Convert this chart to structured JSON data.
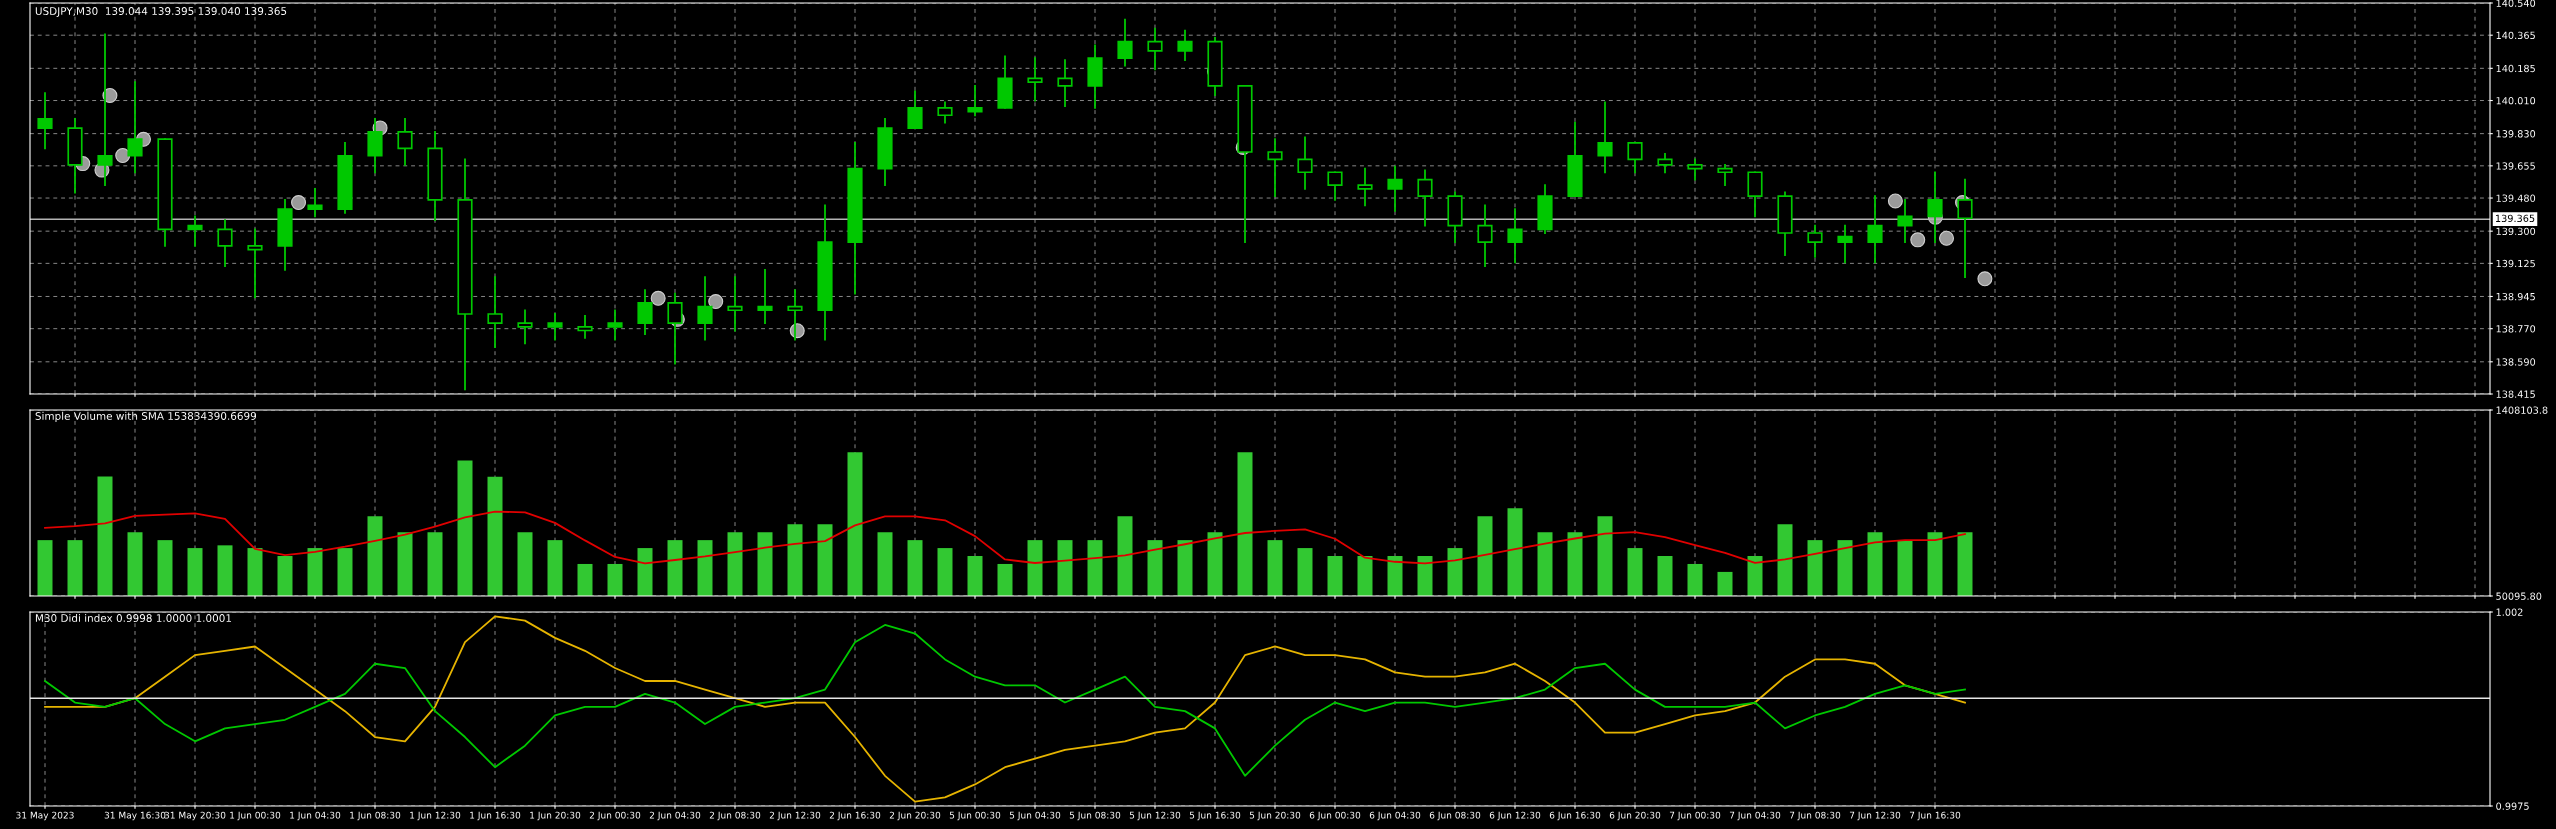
{
  "chart_data": [
    {
      "type": "candlestick",
      "title": "USDJPY,M30  139.044 139.395 139.040 139.365",
      "color": "#00c800",
      "grid": true,
      "tick_labels": "y",
      "categories": [
        null,
        null,
        null,
        null,
        null,
        null,
        null,
        null,
        null,
        null,
        null,
        null,
        null,
        null,
        null,
        null,
        null,
        null,
        null,
        null,
        null,
        null,
        null,
        null,
        null,
        null,
        null,
        null,
        null,
        null,
        null,
        null,
        null,
        null,
        null,
        null,
        null,
        null,
        null,
        null,
        null,
        null,
        null,
        null,
        null,
        null,
        null,
        null,
        null,
        null,
        null,
        null,
        null,
        null,
        null,
        null,
        null,
        null,
        null,
        null,
        null,
        null,
        null,
        null,
        null,
        null,
        null,
        null,
        null,
        null,
        null,
        null,
        null,
        null,
        null,
        null,
        null,
        null,
        null,
        null,
        null,
        null
      ],
      "ohlc": [
        [
          139.86,
          140.05,
          139.75,
          139.91
        ],
        [
          139.86,
          139.91,
          139.51,
          139.66
        ],
        [
          139.66,
          140.37,
          139.55,
          139.71
        ],
        [
          139.71,
          140.11,
          139.62,
          139.8
        ],
        [
          139.8,
          139.8,
          139.22,
          139.31
        ],
        [
          139.31,
          139.38,
          139.22,
          139.33
        ],
        [
          139.31,
          139.36,
          139.11,
          139.22
        ],
        [
          139.22,
          139.31,
          138.94,
          139.2
        ],
        [
          139.22,
          139.47,
          139.09,
          139.42
        ],
        [
          139.42,
          139.53,
          139.38,
          139.44
        ],
        [
          139.42,
          139.78,
          139.4,
          139.71
        ],
        [
          139.71,
          139.91,
          139.62,
          139.84
        ],
        [
          139.84,
          139.91,
          139.66,
          139.75
        ],
        [
          139.75,
          139.84,
          139.36,
          139.47
        ],
        [
          139.47,
          139.69,
          138.44,
          138.85
        ],
        [
          138.85,
          139.05,
          138.67,
          138.8
        ],
        [
          138.8,
          138.87,
          138.69,
          138.78
        ],
        [
          138.78,
          138.85,
          138.71,
          138.8
        ],
        [
          138.78,
          138.84,
          138.72,
          138.76
        ],
        [
          138.78,
          138.87,
          138.71,
          138.8
        ],
        [
          138.8,
          138.98,
          138.74,
          138.91
        ],
        [
          138.91,
          138.96,
          138.58,
          138.8
        ],
        [
          138.8,
          139.05,
          138.71,
          138.89
        ],
        [
          138.89,
          139.05,
          138.76,
          138.87
        ],
        [
          138.87,
          139.09,
          138.8,
          138.89
        ],
        [
          138.89,
          138.98,
          138.71,
          138.87
        ],
        [
          138.87,
          139.44,
          138.71,
          139.24
        ],
        [
          139.24,
          139.78,
          138.96,
          139.64
        ],
        [
          139.64,
          139.91,
          139.55,
          139.86
        ],
        [
          139.86,
          140.06,
          139.86,
          139.97
        ],
        [
          139.97,
          140.0,
          139.89,
          139.93
        ],
        [
          139.95,
          140.09,
          139.93,
          139.97
        ],
        [
          139.97,
          140.25,
          139.97,
          140.13
        ],
        [
          140.13,
          140.24,
          140.01,
          140.11
        ],
        [
          140.13,
          140.23,
          139.98,
          140.09
        ],
        [
          140.09,
          140.31,
          139.97,
          140.24
        ],
        [
          140.24,
          140.45,
          140.2,
          140.33
        ],
        [
          140.33,
          140.4,
          140.18,
          140.28
        ],
        [
          140.28,
          140.39,
          140.23,
          140.33
        ],
        [
          140.33,
          140.35,
          140.04,
          140.09
        ],
        [
          140.09,
          140.09,
          139.24,
          139.73
        ],
        [
          139.73,
          139.8,
          139.49,
          139.69
        ],
        [
          139.69,
          139.81,
          139.53,
          139.62
        ],
        [
          139.62,
          139.62,
          139.47,
          139.55
        ],
        [
          139.55,
          139.64,
          139.44,
          139.53
        ],
        [
          139.53,
          139.65,
          139.41,
          139.58
        ],
        [
          139.58,
          139.63,
          139.33,
          139.49
        ],
        [
          139.49,
          139.51,
          139.24,
          139.33
        ],
        [
          139.33,
          139.44,
          139.11,
          139.24
        ],
        [
          139.24,
          139.42,
          139.13,
          139.31
        ],
        [
          139.31,
          139.55,
          139.29,
          139.49
        ],
        [
          139.49,
          139.89,
          139.49,
          139.71
        ],
        [
          139.71,
          140.0,
          139.62,
          139.78
        ],
        [
          139.78,
          139.78,
          139.62,
          139.69
        ],
        [
          139.69,
          139.72,
          139.62,
          139.66
        ],
        [
          139.66,
          139.69,
          139.58,
          139.64
        ],
        [
          139.64,
          139.66,
          139.55,
          139.62
        ],
        [
          139.62,
          139.62,
          139.38,
          139.49
        ],
        [
          139.49,
          139.51,
          139.17,
          139.29
        ],
        [
          139.29,
          139.33,
          139.16,
          139.24
        ],
        [
          139.24,
          139.33,
          139.13,
          139.27
        ],
        [
          139.24,
          139.49,
          139.13,
          139.33
        ],
        [
          139.33,
          139.47,
          139.24,
          139.38
        ],
        [
          139.38,
          139.62,
          139.24,
          139.47
        ],
        [
          139.47,
          139.58,
          139.05,
          139.37
        ],
        null,
        null,
        null,
        null,
        null,
        null,
        null,
        null,
        null,
        null,
        null,
        null,
        null,
        null,
        null,
        null,
        null
      ],
      "ylim": [
        138.415,
        140.54
      ],
      "yticks": [
        {
          "value": 140.54,
          "label": "140.540"
        },
        {
          "value": 140.365,
          "label": "140.365"
        },
        {
          "value": 140.185,
          "label": "140.185"
        },
        {
          "value": 140.01,
          "label": "140.010"
        },
        {
          "value": 139.83,
          "label": "139.830"
        },
        {
          "value": 139.655,
          "label": "139.655"
        },
        {
          "value": 139.48,
          "label": "139.480"
        },
        {
          "value": 139.3,
          "label": "139.300"
        },
        {
          "value": 139.125,
          "label": "139.125"
        },
        {
          "value": 138.945,
          "label": "138.945"
        },
        {
          "value": 138.77,
          "label": "138.770"
        },
        {
          "value": 138.59,
          "label": "138.590"
        },
        {
          "value": 138.415,
          "label": "138.415"
        }
      ],
      "ref_lines": [
        {
          "axis": "y",
          "value": 139.365,
          "label": "139.365",
          "color": "#b4b4b4"
        }
      ]
    },
    {
      "type": "bar",
      "title": "Simple Volume with SMA 153834390.6699",
      "grid": true,
      "tick_labels": "y",
      "color": "#32c832",
      "categories": [
        null,
        null,
        null,
        null,
        null,
        null,
        null,
        null,
        null,
        null,
        null,
        null,
        null,
        null,
        null,
        null,
        null,
        null,
        null,
        null,
        null,
        null,
        null,
        null,
        null,
        null,
        null,
        null,
        null,
        null,
        null,
        null,
        null,
        null,
        null,
        null,
        null,
        null,
        null,
        null,
        null,
        null,
        null,
        null,
        null,
        null,
        null,
        null,
        null,
        null,
        null,
        null,
        null,
        null,
        null,
        null,
        null,
        null,
        null,
        null,
        null,
        null,
        null,
        null,
        null,
        null,
        null,
        null,
        null,
        null,
        null,
        null,
        null,
        null,
        null,
        null,
        null,
        null,
        null,
        null,
        null,
        null
      ],
      "values": [
        458000,
        458000,
        922000,
        516000,
        458000,
        400000,
        420000,
        400000,
        342000,
        400000,
        400000,
        632000,
        516000,
        516000,
        1040000,
        920000,
        516000,
        458000,
        284000,
        284000,
        400000,
        458000,
        458000,
        516000,
        516000,
        574000,
        574000,
        1100000,
        516000,
        458000,
        400000,
        342000,
        284000,
        458000,
        458000,
        458000,
        632000,
        458000,
        458000,
        516000,
        1100000,
        458000,
        400000,
        342000,
        342000,
        342000,
        342000,
        400000,
        632000,
        690000,
        516000,
        516000,
        632000,
        400000,
        342000,
        284000,
        226000,
        342000,
        574000,
        458000,
        458000,
        516000,
        458000,
        516000,
        516000,
        null,
        null,
        null,
        null,
        null,
        null,
        null,
        null,
        null,
        null,
        null,
        null,
        null,
        null,
        null,
        null,
        null
      ],
      "ylim": [
        50095.8,
        1408103.8
      ],
      "yticks": [
        {
          "value": 50095.8,
          "label": "50095.80"
        },
        {
          "value": 1408103.8,
          "label": "1408103.8"
        }
      ]
    },
    {
      "type": "line",
      "tick_labels": false,
      "color": "#e00000",
      "categories": [
        null,
        null,
        null,
        null,
        null,
        null,
        null,
        null,
        null,
        null,
        null,
        null,
        null,
        null,
        null,
        null,
        null,
        null,
        null,
        null,
        null,
        null,
        null,
        null,
        null,
        null,
        null,
        null,
        null,
        null,
        null,
        null,
        null,
        null,
        null,
        null,
        null,
        null,
        null,
        null,
        null,
        null,
        null,
        null,
        null,
        null,
        null,
        null,
        null,
        null,
        null,
        null,
        null,
        null,
        null,
        null,
        null,
        null,
        null,
        null,
        null,
        null,
        null,
        null,
        null,
        null,
        null,
        null,
        null,
        null,
        null,
        null,
        null,
        null,
        null,
        null,
        null,
        null,
        null,
        null,
        null,
        null
      ],
      "values": [
        548000,
        560000,
        581000,
        635000,
        644000,
        654000,
        614000,
        394000,
        348000,
        373000,
        410000,
        452000,
        499000,
        557000,
        624000,
        666000,
        661000,
        584000,
        456000,
        335000,
        288000,
        313000,
        339000,
        370000,
        403000,
        431000,
        451000,
        566000,
        632000,
        632000,
        603000,
        487000,
        317000,
        291000,
        309000,
        326000,
        347000,
        388000,
        428000,
        470000,
        510000,
        526000,
        536000,
        468000,
        330000,
        300000,
        288000,
        310000,
        351000,
        392000,
        433000,
        470000,
        505000,
        516000,
        480000,
        422000,
        365000,
        292000,
        317000,
        358000,
        400000,
        442000,
        458000,
        458000,
        502000,
        null,
        null,
        null,
        null,
        null,
        null,
        null,
        null,
        null,
        null,
        null,
        null,
        null,
        null,
        null,
        null,
        null
      ],
      "ylim": [
        50095.8,
        1408103.8
      ]
    },
    {
      "type": "line",
      "title": "M30 Didi index 0.9998 1.0000 1.0001",
      "grid": true,
      "categories": [
        "31 May 2023",
        null,
        null,
        "31 May 16:30",
        null,
        "31 May 20:30",
        null,
        "1 Jun 00:30",
        null,
        "1 Jun 04:30",
        null,
        "1 Jun 08:30",
        null,
        "1 Jun 12:30",
        null,
        "1 Jun 16:30",
        null,
        "1 Jun 20:30",
        null,
        "2 Jun 00:30",
        null,
        "2 Jun 04:30",
        null,
        "2 Jun 08:30",
        null,
        "2 Jun 12:30",
        null,
        "2 Jun 16:30",
        null,
        "2 Jun 20:30",
        null,
        "5 Jun 00:30",
        null,
        "5 Jun 04:30",
        null,
        "5 Jun 08:30",
        null,
        "5 Jun 12:30",
        null,
        "5 Jun 16:30",
        null,
        "5 Jun 20:30",
        null,
        "6 Jun 00:30",
        null,
        "6 Jun 04:30",
        null,
        "6 Jun 08:30",
        null,
        "6 Jun 12:30",
        null,
        "6 Jun 16:30",
        null,
        "6 Jun 20:30",
        null,
        "7 Jun 00:30",
        null,
        "7 Jun 04:30",
        null,
        "7 Jun 08:30",
        null,
        "7 Jun 12:30",
        null,
        "7 Jun 16:30",
        null,
        null,
        null,
        null,
        null,
        null,
        null,
        null,
        null,
        null,
        null,
        null,
        null,
        null,
        null,
        null,
        null,
        null
      ],
      "series": [
        {
          "color": "#e6b400",
          "values": [
            0.9998,
            0.9998,
            0.9998,
            1.0,
            1.0005,
            1.001,
            1.0011,
            1.0012,
            1.0007,
            1.0002,
            0.9997,
            0.9991,
            0.999,
            0.9998,
            1.0013,
            1.0019,
            1.0018,
            1.0014,
            1.0011,
            1.0007,
            1.0004,
            1.0004,
            1.0002,
            1.0,
            0.9998,
            0.9999,
            0.9999,
            0.9991,
            0.9982,
            0.9976,
            0.9977,
            0.998,
            0.9984,
            0.9986,
            0.9988,
            0.9989,
            0.999,
            0.9992,
            0.9993,
            0.9999,
            1.001,
            1.0012,
            1.001,
            1.001,
            1.0009,
            1.0006,
            1.0005,
            1.0005,
            1.0006,
            1.0008,
            1.0004,
            0.9999,
            0.9992,
            0.9992,
            0.9994,
            0.9996,
            0.9997,
            0.9999,
            1.0005,
            1.0009,
            1.0009,
            1.0008,
            1.0003,
            1.0001,
            0.9999,
            null,
            null,
            null,
            null,
            null,
            null,
            null,
            null,
            null,
            null,
            null,
            null,
            null,
            null,
            null,
            null,
            null
          ]
        },
        {
          "color": "#00c800",
          "values": [
            1.0004,
            0.9999,
            0.9998,
            1.0,
            0.9994,
            0.999,
            0.9993,
            0.9994,
            0.9995,
            0.9998,
            1.0001,
            1.0008,
            1.0007,
            0.9997,
            0.9991,
            0.9984,
            0.9989,
            0.9996,
            0.9998,
            0.9998,
            1.0001,
            0.9999,
            0.9994,
            0.9998,
            0.9999,
            1.0,
            1.0002,
            1.0013,
            1.0017,
            1.0015,
            1.0009,
            1.0005,
            1.0003,
            1.0003,
            0.9999,
            1.0002,
            1.0005,
            0.9998,
            0.9997,
            0.9993,
            0.9982,
            0.9989,
            0.9995,
            0.9999,
            0.9997,
            0.9999,
            0.9999,
            0.9998,
            0.9999,
            1.0,
            1.0002,
            1.0007,
            1.0008,
            1.0002,
            0.9998,
            0.9998,
            0.9998,
            0.9999,
            0.9993,
            0.9996,
            0.9998,
            1.0001,
            1.0003,
            1.0001,
            1.0002,
            null,
            null,
            null,
            null,
            null,
            null,
            null,
            null,
            null,
            null,
            null,
            null,
            null,
            null,
            null,
            null,
            null
          ]
        }
      ],
      "ylim": [
        0.9975,
        1.002
      ],
      "yticks": [
        1.002,
        0.9975
      ],
      "ref_lines": [
        {
          "axis": "y",
          "value": 1.0,
          "color": "#e6e6e6"
        }
      ]
    }
  ]
}
